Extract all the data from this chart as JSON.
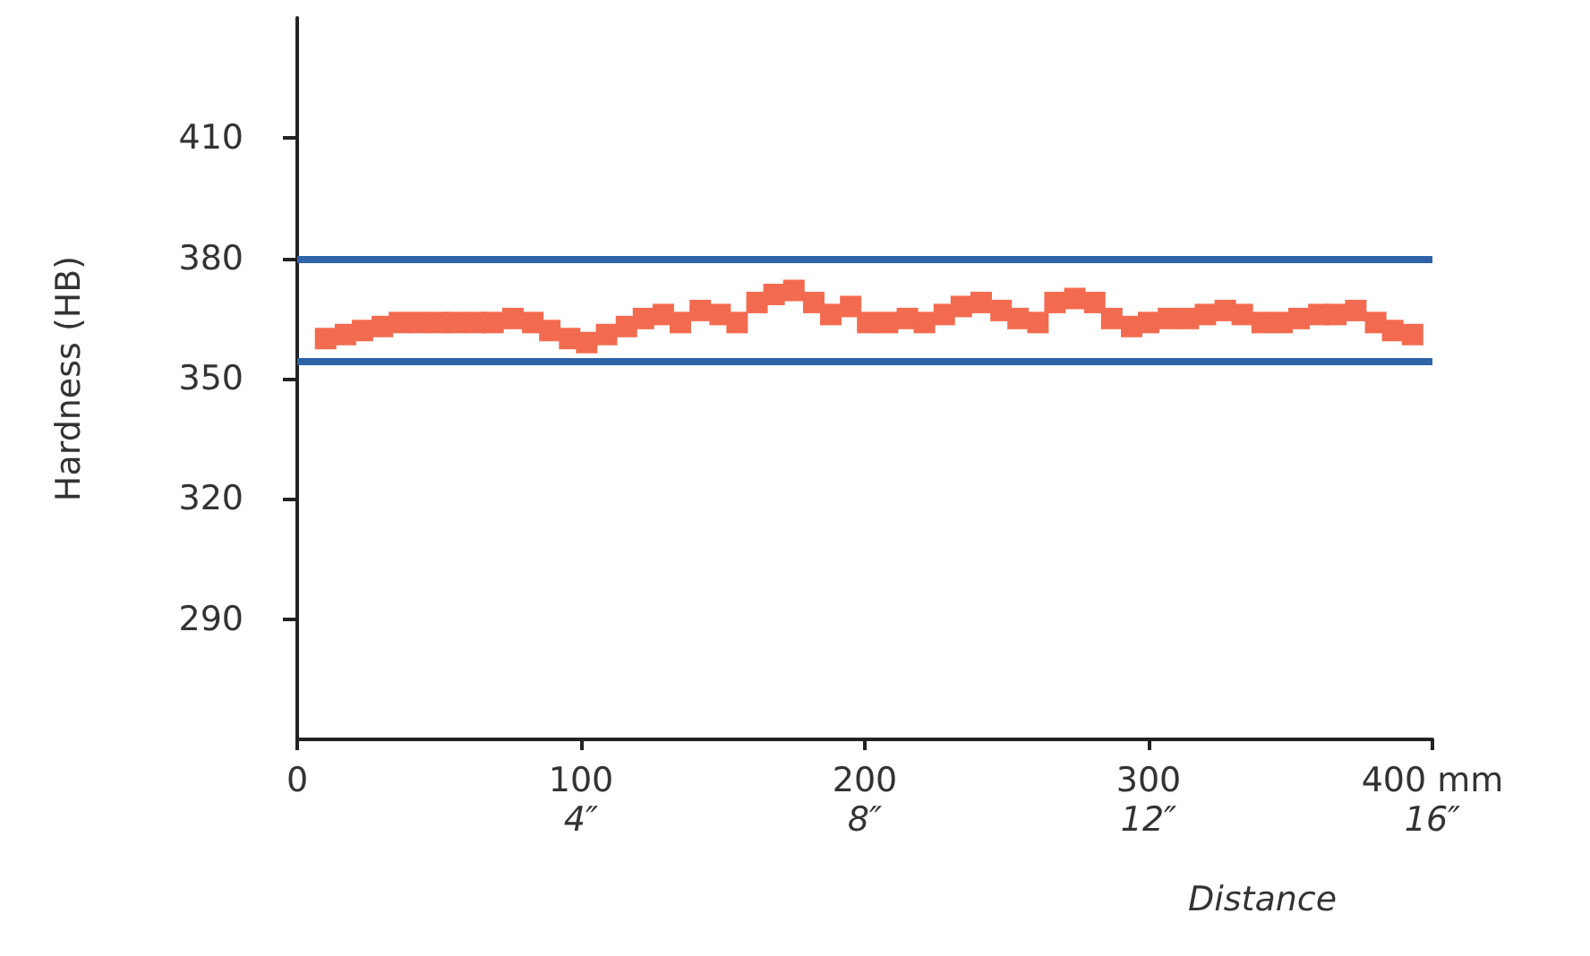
{
  "chart_data": {
    "type": "scatter",
    "xlabel": "Distance",
    "ylabel": "Hardness (HB)",
    "x": [
      10,
      17,
      23,
      30,
      36,
      43,
      50,
      56,
      63,
      69,
      76,
      83,
      89,
      96,
      102,
      109,
      116,
      122,
      129,
      135,
      142,
      149,
      155,
      162,
      168,
      175,
      182,
      188,
      195,
      201,
      208,
      215,
      221,
      228,
      234,
      241,
      248,
      254,
      261,
      267,
      274,
      281,
      287,
      294,
      300,
      307,
      314,
      320,
      327,
      333,
      340,
      347,
      353,
      360,
      366,
      373,
      380,
      386,
      393
    ],
    "series": [
      {
        "color": "#f26b50",
        "values": [
          360,
          361,
          362,
          363,
          364,
          364,
          364,
          364,
          364,
          364,
          365,
          364,
          362,
          360,
          359,
          361,
          363,
          365,
          366,
          364,
          367,
          366,
          364,
          369,
          371,
          372,
          369,
          366,
          368,
          364,
          364,
          365,
          364,
          366,
          368,
          369,
          367,
          365,
          364,
          369,
          370,
          369,
          365,
          363,
          364,
          365,
          365,
          366,
          367,
          366,
          364,
          364,
          365,
          366,
          366,
          367,
          364,
          362,
          361
        ]
      }
    ],
    "marker": "square",
    "xlim": [
      0,
      400
    ],
    "xticks": [
      0,
      100,
      200,
      300,
      {
        "value": 400,
        "label": "400 mm"
      }
    ],
    "x2lim": [
      0,
      16
    ],
    "x2ticks": [
      {
        "value": 4,
        "label": "4″"
      },
      {
        "value": 8,
        "label": "8″"
      },
      {
        "value": 12,
        "label": "12″"
      },
      {
        "value": 16,
        "label": "16″"
      }
    ],
    "ylim": [
      260,
      440
    ],
    "yticks": [
      290,
      320,
      350,
      380,
      410
    ],
    "ref_lines": [
      {
        "axis": "y",
        "value": 380,
        "color": "#2e63a8",
        "line_style": "solid"
      },
      {
        "axis": "y",
        "value": 354.5,
        "color": "#2e63a8",
        "line_style": "solid"
      }
    ],
    "grid": false
  }
}
